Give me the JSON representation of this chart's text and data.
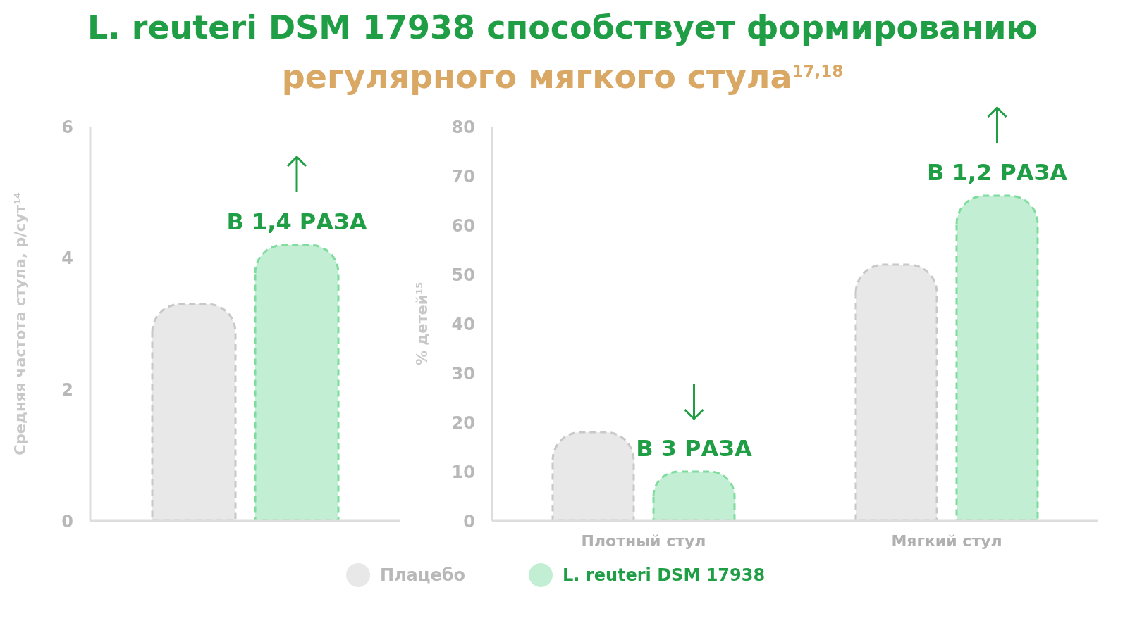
{
  "chart_data": [
    {
      "type": "bar",
      "title": "L. reuteri DSM 17938 способствует формированию",
      "subtitle": "регулярного мягкого стула$^{17,18}$",
      "ylabel": "Средняя частота стула, р/сут$^{14}$",
      "categories": [
        null
      ],
      "series": [
        {
          "name": "Плацебо",
          "color": "#e8e8e8",
          "values": [
            3.3
          ]
        },
        {
          "name": "L. reuteri DSM 17938",
          "color": "#c2efd3",
          "values": [
            4.2
          ]
        }
      ],
      "ylim": [
        0,
        6
      ],
      "yticks": [
        0,
        2,
        4,
        6
      ],
      "grid": false,
      "legend": "bottom",
      "annotations": [
        "В 1,4 РАЗА"
      ]
    },
    {
      "type": "bar",
      "ylabel": "% детей$^{15}$",
      "categories": [
        "Плотный стул",
        "Мягкий стул"
      ],
      "series": [
        {
          "color": "#e8e8e8",
          "values": [
            18,
            52
          ]
        },
        {
          "color": "#c2efd3",
          "values": [
            10,
            66
          ]
        }
      ],
      "ylim": [
        0,
        80
      ],
      "yticks": [
        0,
        10,
        20,
        30,
        40,
        50,
        60,
        70,
        80
      ],
      "grid": false,
      "annotations": [
        "В 3 РАЗА",
        "В 1,2 РАЗА"
      ]
    }
  ]
}
